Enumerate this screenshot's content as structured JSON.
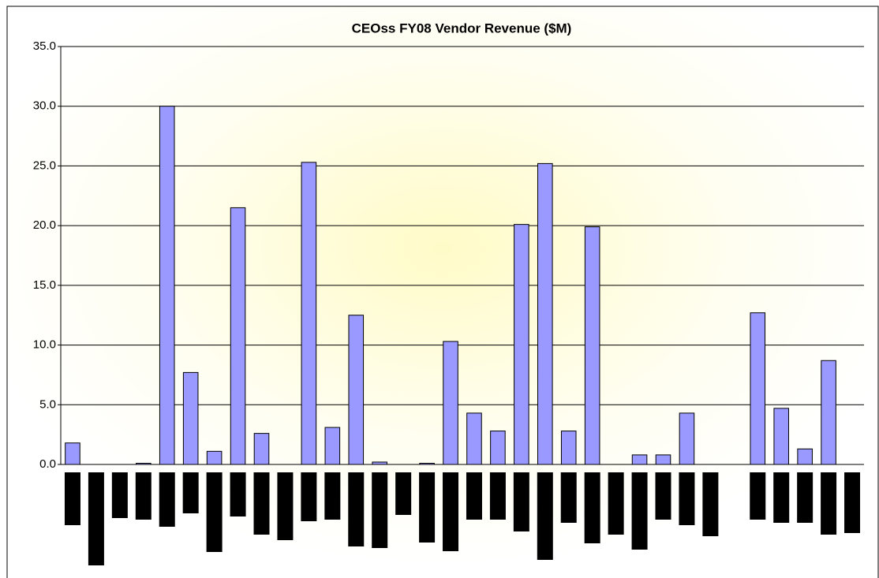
{
  "chart_data": {
    "type": "bar",
    "title": "CEOss FY08 Vendor Revenue ($M)",
    "categories": [
      null,
      null,
      null,
      null,
      null,
      null,
      null,
      null,
      null,
      null,
      null,
      null,
      null,
      null,
      null,
      null,
      null,
      null,
      null,
      null,
      null,
      null,
      null,
      null,
      null,
      null,
      null,
      null,
      null,
      null,
      null,
      null,
      null,
      null
    ],
    "values": [
      1.8,
      0,
      0,
      0.1,
      30.0,
      7.7,
      1.1,
      21.5,
      2.6,
      0,
      25.3,
      3.1,
      12.5,
      0.2,
      0,
      0.1,
      10.3,
      4.3,
      2.8,
      20.1,
      25.2,
      2.8,
      19.9,
      0,
      0.8,
      0.8,
      4.3,
      0,
      0,
      12.7,
      4.7,
      1.3,
      8.7,
      0
    ],
    "color": "#9999ff",
    "ylim": [
      0,
      35
    ],
    "yticks": [
      {
        "value": 0,
        "label": "0.0"
      },
      {
        "value": 5,
        "label": "5.0"
      },
      {
        "value": 10,
        "label": "10.0"
      },
      {
        "value": 15,
        "label": "15.0"
      },
      {
        "value": 20,
        "label": "20.0"
      },
      {
        "value": 25,
        "label": "25.0"
      },
      {
        "value": 30,
        "label": "30.0"
      },
      {
        "value": 35,
        "label": "35.0"
      }
    ],
    "grid": true
  }
}
